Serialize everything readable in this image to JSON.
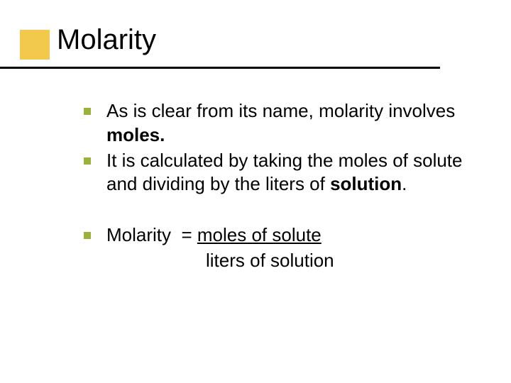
{
  "colors": {
    "accent_square": "#f2c94c",
    "bullet": "#9ab23a",
    "title_underline": "#000000",
    "text": "#000000",
    "background": "#ffffff"
  },
  "typography": {
    "title_fontsize": 40,
    "body_fontsize": 26,
    "font_family": "Verdana"
  },
  "title": "Molarity",
  "bullets": [
    {
      "pre": "As is clear from its name, molarity involves ",
      "bold": "moles.",
      "post": ""
    },
    {
      "pre": "It is calculated by taking the moles of solute and dividing by the liters of ",
      "bold": "solution",
      "post": "."
    }
  ],
  "formula": {
    "lhs": "Molarity",
    "eq": " = ",
    "numerator": "moles of solute",
    "denominator": "liters of solution"
  }
}
